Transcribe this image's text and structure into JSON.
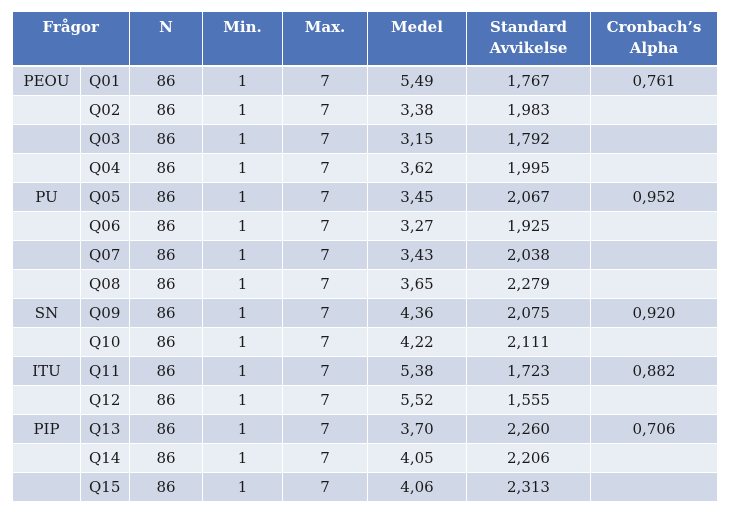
{
  "headers": {
    "fragor": "Frågor",
    "n": "N",
    "min": "Min.",
    "max": "Max.",
    "medel": "Medel",
    "std_line1": "Standard",
    "std_line2": "Avvikelse",
    "alpha_line1": "Cronbach’s",
    "alpha_line2": "Alpha"
  },
  "rows": [
    {
      "cat": "PEOU",
      "q": "Q01",
      "n": "86",
      "min": "1",
      "max": "7",
      "medel": "5,49",
      "std": "1,767",
      "alpha": "0,761"
    },
    {
      "cat": "",
      "q": "Q02",
      "n": "86",
      "min": "1",
      "max": "7",
      "medel": "3,38",
      "std": "1,983",
      "alpha": ""
    },
    {
      "cat": "",
      "q": "Q03",
      "n": "86",
      "min": "1",
      "max": "7",
      "medel": "3,15",
      "std": "1,792",
      "alpha": ""
    },
    {
      "cat": "",
      "q": "Q04",
      "n": "86",
      "min": "1",
      "max": "7",
      "medel": "3,62",
      "std": "1,995",
      "alpha": ""
    },
    {
      "cat": "PU",
      "q": "Q05",
      "n": "86",
      "min": "1",
      "max": "7",
      "medel": "3,45",
      "std": "2,067",
      "alpha": "0,952"
    },
    {
      "cat": "",
      "q": "Q06",
      "n": "86",
      "min": "1",
      "max": "7",
      "medel": "3,27",
      "std": "1,925",
      "alpha": ""
    },
    {
      "cat": "",
      "q": "Q07",
      "n": "86",
      "min": "1",
      "max": "7",
      "medel": "3,43",
      "std": "2,038",
      "alpha": ""
    },
    {
      "cat": "",
      "q": "Q08",
      "n": "86",
      "min": "1",
      "max": "7",
      "medel": "3,65",
      "std": "2,279",
      "alpha": ""
    },
    {
      "cat": "SN",
      "q": "Q09",
      "n": "86",
      "min": "1",
      "max": "7",
      "medel": "4,36",
      "std": "2,075",
      "alpha": "0,920"
    },
    {
      "cat": "",
      "q": "Q10",
      "n": "86",
      "min": "1",
      "max": "7",
      "medel": "4,22",
      "std": "2,111",
      "alpha": ""
    },
    {
      "cat": "ITU",
      "q": "Q11",
      "n": "86",
      "min": "1",
      "max": "7",
      "medel": "5,38",
      "std": "1,723",
      "alpha": "0,882"
    },
    {
      "cat": "",
      "q": "Q12",
      "n": "86",
      "min": "1",
      "max": "7",
      "medel": "5,52",
      "std": "1,555",
      "alpha": ""
    },
    {
      "cat": "PIP",
      "q": "Q13",
      "n": "86",
      "min": "1",
      "max": "7",
      "medel": "3,70",
      "std": "2,260",
      "alpha": "0,706"
    },
    {
      "cat": "",
      "q": "Q14",
      "n": "86",
      "min": "1",
      "max": "7",
      "medel": "4,05",
      "std": "2,206",
      "alpha": ""
    },
    {
      "cat": "",
      "q": "Q15",
      "n": "86",
      "min": "1",
      "max": "7",
      "medel": "4,06",
      "std": "2,313",
      "alpha": ""
    }
  ],
  "colors": {
    "header_bg": "#4f74b8",
    "row_odd_bg": "#d0d8e8",
    "row_even_bg": "#e9edf4"
  }
}
